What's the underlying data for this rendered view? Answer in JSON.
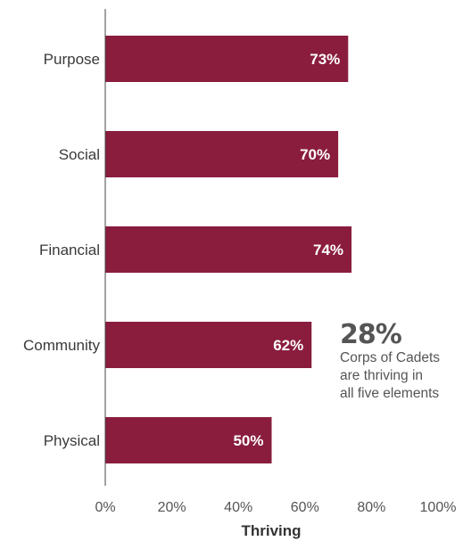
{
  "chart_data": {
    "type": "bar",
    "orientation": "horizontal",
    "categories": [
      "Purpose",
      "Social",
      "Financial",
      "Community",
      "Physical"
    ],
    "values": [
      73,
      70,
      74,
      62,
      50
    ],
    "value_labels": [
      "73%",
      "70%",
      "74%",
      "62%",
      "50%"
    ],
    "xlabel": "Thriving",
    "xlim": [
      0,
      100
    ],
    "xticks": [
      "0%",
      "20%",
      "40%",
      "60%",
      "80%",
      "100%"
    ],
    "bar_color": "#8a1d3e",
    "grid": false,
    "legend": "none",
    "annotation": {
      "value": "28%",
      "lines": [
        "Corps of Cadets",
        "are thriving in",
        "all five elements"
      ]
    }
  }
}
